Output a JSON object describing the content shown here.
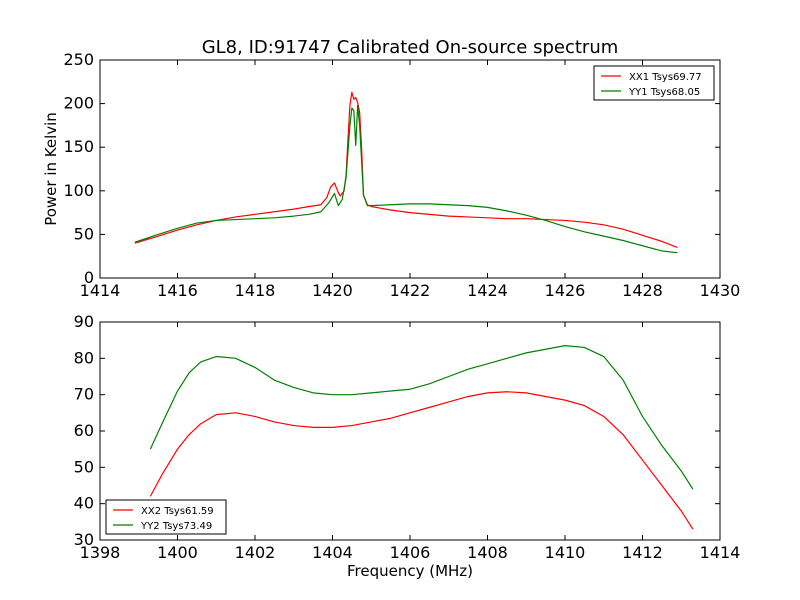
{
  "figure": {
    "title": "GL8, ID:91747 Calibrated On-source spectrum",
    "ylabel_top": "Power in Kelvin",
    "xlabel_bottom": "Frequency (MHz)"
  },
  "chart_data": [
    {
      "type": "line",
      "title": "GL8, ID:91747 Calibrated On-source spectrum",
      "xlabel": "",
      "ylabel": "Power in Kelvin",
      "xlim": [
        1414,
        1430
      ],
      "ylim": [
        0,
        250
      ],
      "xticks": [
        1414,
        1416,
        1418,
        1420,
        1422,
        1424,
        1426,
        1428,
        1430
      ],
      "yticks": [
        0,
        50,
        100,
        150,
        200,
        250
      ],
      "legend_position": "top-right",
      "grid": false,
      "series": [
        {
          "name": "XX1 Tsys69.77",
          "color": "#ff0000",
          "x": [
            1414.9,
            1415.5,
            1416.0,
            1416.5,
            1417.0,
            1417.5,
            1418.0,
            1418.5,
            1419.0,
            1419.4,
            1419.7,
            1419.85,
            1419.95,
            1420.05,
            1420.15,
            1420.2,
            1420.3,
            1420.35,
            1420.4,
            1420.45,
            1420.5,
            1420.55,
            1420.6,
            1420.65,
            1420.7,
            1420.75,
            1420.8,
            1420.9,
            1421.0,
            1421.5,
            1422.0,
            1422.5,
            1423.0,
            1423.5,
            1424.0,
            1424.5,
            1425.0,
            1425.5,
            1426.0,
            1426.5,
            1427.0,
            1427.5,
            1428.0,
            1428.5,
            1428.9
          ],
          "y": [
            40,
            48,
            55,
            61,
            66,
            70,
            73,
            76,
            79,
            82,
            84,
            92,
            104,
            109,
            98,
            94,
            100,
            118,
            160,
            198,
            213,
            205,
            207,
            201,
            190,
            150,
            95,
            84,
            82,
            78,
            75,
            73,
            71,
            70,
            69,
            68,
            68,
            67,
            66,
            64,
            61,
            56,
            49,
            42,
            35
          ]
        },
        {
          "name": "YY1 Tsys68.05",
          "color": "#008000",
          "x": [
            1414.9,
            1415.5,
            1416.0,
            1416.5,
            1417.0,
            1417.5,
            1418.0,
            1418.5,
            1419.0,
            1419.4,
            1419.7,
            1419.9,
            1420.05,
            1420.15,
            1420.25,
            1420.35,
            1420.45,
            1420.5,
            1420.55,
            1420.6,
            1420.65,
            1420.7,
            1420.8,
            1420.9,
            1421.0,
            1421.5,
            1422.0,
            1422.5,
            1423.0,
            1423.5,
            1424.0,
            1424.5,
            1425.0,
            1425.5,
            1426.0,
            1426.5,
            1427.0,
            1427.5,
            1428.0,
            1428.5,
            1428.9
          ],
          "y": [
            41,
            50,
            57,
            63,
            66,
            67,
            68,
            69,
            71,
            73,
            76,
            86,
            97,
            83,
            90,
            115,
            175,
            195,
            192,
            152,
            198,
            175,
            95,
            83,
            83,
            84,
            85,
            85,
            84,
            83,
            81,
            77,
            72,
            66,
            59,
            53,
            48,
            43,
            37,
            31,
            29
          ]
        }
      ]
    },
    {
      "type": "line",
      "title": "",
      "xlabel": "Frequency (MHz)",
      "ylabel": "",
      "xlim": [
        1398,
        1414
      ],
      "ylim": [
        30,
        90
      ],
      "xticks": [
        1398,
        1400,
        1402,
        1404,
        1406,
        1408,
        1410,
        1412,
        1414
      ],
      "yticks": [
        30,
        40,
        50,
        60,
        70,
        80,
        90
      ],
      "legend_position": "bottom-left",
      "grid": false,
      "series": [
        {
          "name": "XX2 Tsys61.59",
          "color": "#ff0000",
          "x": [
            1399.3,
            1399.6,
            1400.0,
            1400.3,
            1400.6,
            1401.0,
            1401.5,
            1402.0,
            1402.5,
            1403.0,
            1403.5,
            1404.0,
            1404.5,
            1405.0,
            1405.5,
            1406.0,
            1406.5,
            1407.0,
            1407.5,
            1408.0,
            1408.5,
            1409.0,
            1409.5,
            1410.0,
            1410.5,
            1411.0,
            1411.5,
            1412.0,
            1412.5,
            1413.0,
            1413.3
          ],
          "y": [
            42,
            48,
            55,
            59,
            62,
            64.5,
            65,
            64,
            62.5,
            61.5,
            61,
            61,
            61.5,
            62.5,
            63.5,
            65,
            66.5,
            68,
            69.5,
            70.5,
            70.8,
            70.5,
            69.5,
            68.5,
            67,
            64,
            59,
            52,
            45,
            38,
            33
          ]
        },
        {
          "name": "YY2 Tsys73.49",
          "color": "#008000",
          "x": [
            1399.3,
            1399.6,
            1400.0,
            1400.3,
            1400.6,
            1401.0,
            1401.5,
            1402.0,
            1402.5,
            1403.0,
            1403.5,
            1404.0,
            1404.5,
            1405.0,
            1405.5,
            1406.0,
            1406.5,
            1407.0,
            1407.5,
            1408.0,
            1408.5,
            1409.0,
            1409.5,
            1410.0,
            1410.5,
            1411.0,
            1411.5,
            1412.0,
            1412.5,
            1413.0,
            1413.3
          ],
          "y": [
            55,
            62,
            71,
            76,
            79,
            80.5,
            80,
            77.5,
            74,
            72,
            70.5,
            70,
            70,
            70.5,
            71,
            71.5,
            73,
            75,
            77,
            78.5,
            80,
            81.5,
            82.5,
            83.5,
            83,
            80.5,
            74,
            64,
            56,
            49,
            44
          ]
        }
      ]
    }
  ]
}
